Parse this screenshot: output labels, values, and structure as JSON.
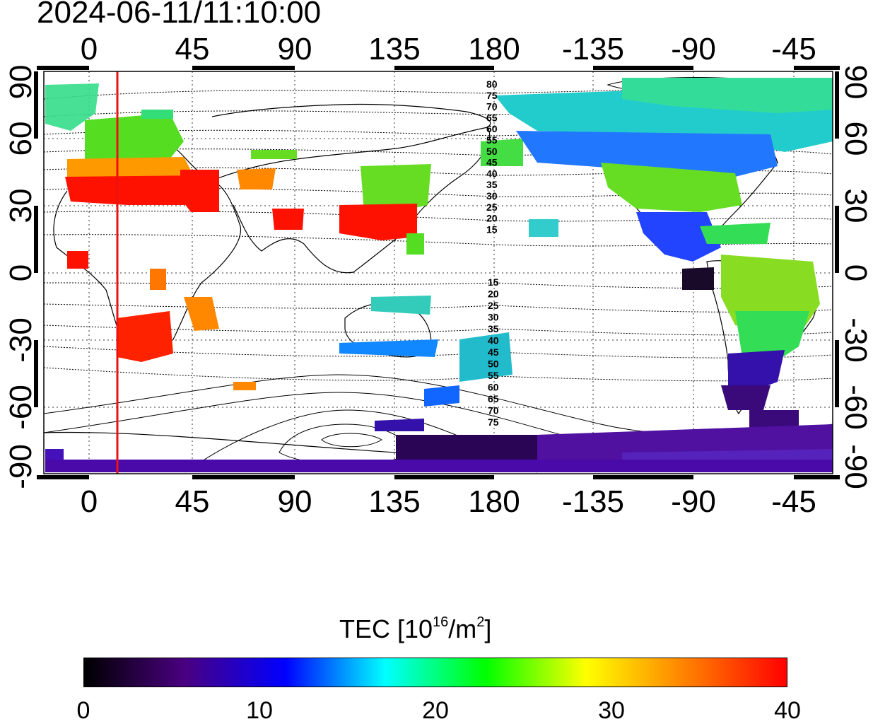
{
  "timestamp": "2024-06-11/11:10:00",
  "map": {
    "x_ticks_top": [
      "0",
      "45",
      "90",
      "135",
      "180",
      "-135",
      "-90",
      "-45"
    ],
    "x_ticks_bottom": [
      "0",
      "45",
      "90",
      "135",
      "180",
      "-135",
      "-90",
      "-45"
    ],
    "y_ticks_left": [
      "90",
      "60",
      "30",
      "0",
      "-30",
      "-60",
      "-90"
    ],
    "y_ticks_right": [
      "90",
      "60",
      "30",
      "0",
      "-30",
      "-60",
      "-90"
    ],
    "lon_range": [
      -20,
      320
    ],
    "lat_range": [
      -90,
      90
    ],
    "grid": true,
    "terminator_lon": 12,
    "terminator_color": "#ee1111",
    "contour_labels_north": [
      "80",
      "75",
      "70",
      "65",
      "60",
      "55",
      "50",
      "45",
      "40",
      "35",
      "30",
      "25",
      "20",
      "15"
    ],
    "contour_labels_south": [
      "15",
      "20",
      "25",
      "30",
      "35",
      "40",
      "45",
      "50",
      "55",
      "60",
      "65",
      "70",
      "75"
    ]
  },
  "colorbar": {
    "title_main": "TEC  [10",
    "title_exp1": "16",
    "title_mid": "/m",
    "title_exp2": "2",
    "title_end": "]",
    "tick_labels": [
      "0",
      "10",
      "20",
      "30",
      "40"
    ],
    "range": [
      0,
      40
    ],
    "colors": [
      "#000000",
      "#4a0080",
      "#0000ff",
      "#00ffff",
      "#00ff00",
      "#ffff00",
      "#ff8000",
      "#ff0000"
    ]
  }
}
